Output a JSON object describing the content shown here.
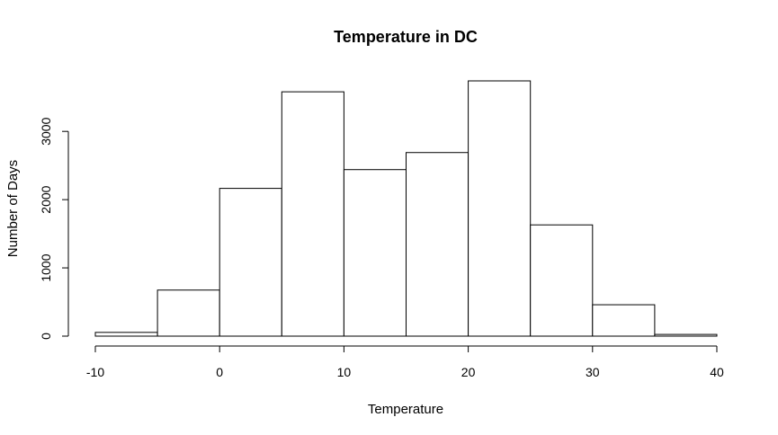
{
  "chart_data": {
    "type": "bar",
    "title": "Temperature in DC",
    "xlabel": "Temperature",
    "ylabel": "Number of Days",
    "bins": [
      {
        "from": -10,
        "to": -5,
        "count": 55
      },
      {
        "from": -5,
        "to": 0,
        "count": 675
      },
      {
        "from": 0,
        "to": 5,
        "count": 2165
      },
      {
        "from": 5,
        "to": 10,
        "count": 3580
      },
      {
        "from": 10,
        "to": 15,
        "count": 2440
      },
      {
        "from": 15,
        "to": 20,
        "count": 2690
      },
      {
        "from": 20,
        "to": 25,
        "count": 3740
      },
      {
        "from": 25,
        "to": 30,
        "count": 1630
      },
      {
        "from": 30,
        "to": 35,
        "count": 460
      },
      {
        "from": 35,
        "to": 40,
        "count": 25
      }
    ],
    "xlim": [
      -10,
      40
    ],
    "ylim": [
      0,
      3740
    ],
    "x_ticks": [
      -10,
      0,
      10,
      20,
      30,
      40
    ],
    "y_ticks": [
      0,
      1000,
      2000,
      3000
    ],
    "grid": false,
    "colors": {
      "fill": "#ffffff",
      "stroke": "#000000"
    }
  }
}
